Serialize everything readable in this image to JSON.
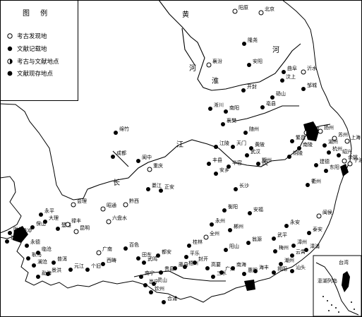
{
  "legend": {
    "title": "图 例",
    "items": [
      {
        "symbol": "open",
        "label": "考古发现地"
      },
      {
        "symbol": "filled",
        "label": "文献记载地"
      },
      {
        "symbol": "half",
        "label": "考古与文献地点"
      },
      {
        "symbol": "dot-filled",
        "label": "文献现存地点"
      }
    ]
  },
  "rivers": [
    {
      "name": "黄河",
      "label_a": "黄",
      "label_b": "河"
    },
    {
      "name": "长江",
      "label_a": "长",
      "label_b": "江",
      "label_c": "江"
    },
    {
      "name": "淮河",
      "label": "淮"
    }
  ],
  "places": [
    {
      "name": "阳原",
      "symbol": "open"
    },
    {
      "name": "北京",
      "symbol": "open"
    },
    {
      "name": "隆尧",
      "symbol": "filled"
    },
    {
      "name": "襄汾",
      "symbol": "open"
    },
    {
      "name": "安阳",
      "symbol": "filled"
    },
    {
      "name": "曲阜",
      "symbol": "filled"
    },
    {
      "name": "沂水",
      "symbol": "open"
    },
    {
      "name": "汶上",
      "symbol": "filled"
    },
    {
      "name": "开封",
      "symbol": "filled"
    },
    {
      "name": "邹城",
      "symbol": "filled"
    },
    {
      "name": "砀山",
      "symbol": "filled"
    },
    {
      "name": "亳县",
      "symbol": "filled"
    },
    {
      "name": "南阳",
      "symbol": "filled"
    },
    {
      "name": "淅川",
      "symbol": "filled"
    },
    {
      "name": "襄樊",
      "symbol": "filled"
    },
    {
      "name": "随州",
      "symbol": "filled"
    },
    {
      "name": "绵竹",
      "symbol": "filled"
    },
    {
      "name": "成都",
      "symbol": "filled"
    },
    {
      "name": "阆中",
      "symbol": "filled"
    },
    {
      "name": "重庆",
      "symbol": "open"
    },
    {
      "name": "江陵",
      "symbol": "filled"
    },
    {
      "name": "天门",
      "symbol": "filled"
    },
    {
      "name": "黄陂",
      "symbol": "filled"
    },
    {
      "name": "武汉",
      "symbol": "filled"
    },
    {
      "name": "鄂州",
      "symbol": "filled"
    },
    {
      "name": "丰县",
      "symbol": "filled"
    },
    {
      "name": "华容",
      "symbol": "filled"
    },
    {
      "name": "安乡",
      "symbol": "filled"
    },
    {
      "name": "长沙",
      "symbol": "filled"
    },
    {
      "name": "綦江",
      "symbol": "filled"
    },
    {
      "name": "正安",
      "symbol": "filled"
    },
    {
      "name": "南京",
      "symbol": "half"
    },
    {
      "name": "扬州",
      "symbol": "open"
    },
    {
      "name": "苏州",
      "symbol": "open"
    },
    {
      "name": "上海",
      "symbol": "open"
    },
    {
      "name": "杭州",
      "symbol": "filled"
    },
    {
      "name": "绍兴",
      "symbol": "filled"
    },
    {
      "name": "余姚",
      "symbol": "open"
    },
    {
      "name": "宁波",
      "symbol": "open"
    },
    {
      "name": "湖州",
      "symbol": "filled"
    },
    {
      "name": "南陵",
      "symbol": "filled"
    },
    {
      "name": "繁昌",
      "symbol": "filled"
    },
    {
      "name": "铜陵",
      "symbol": "filled"
    },
    {
      "name": "建德",
      "symbol": "filled"
    },
    {
      "name": "东阳",
      "symbol": "filled"
    },
    {
      "name": "衢州",
      "symbol": "filled"
    },
    {
      "name": "会理",
      "symbol": "open"
    },
    {
      "name": "昭通",
      "symbol": "open"
    },
    {
      "name": "黔西",
      "symbol": "open"
    },
    {
      "name": "六盘水",
      "symbol": "open"
    },
    {
      "name": "永州",
      "symbol": "filled"
    },
    {
      "name": "郴州",
      "symbol": "filled"
    },
    {
      "name": "衡阳",
      "symbol": "filled"
    },
    {
      "name": "安福",
      "symbol": "filled"
    },
    {
      "name": "全州",
      "symbol": "open"
    },
    {
      "name": "桂林",
      "symbol": "filled"
    },
    {
      "name": "阳山",
      "symbol": "filled"
    },
    {
      "name": "翁源",
      "symbol": "filled"
    },
    {
      "name": "永安",
      "symbol": "filled"
    },
    {
      "name": "泰安",
      "symbol": "filled"
    },
    {
      "name": "闽侯",
      "symbol": "open"
    },
    {
      "name": "武平",
      "symbol": "filled"
    },
    {
      "name": "梅州",
      "symbol": "filled"
    },
    {
      "name": "漳州",
      "symbol": "filled"
    },
    {
      "name": "云霄",
      "symbol": "filled"
    },
    {
      "name": "漳浦",
      "symbol": "filled"
    },
    {
      "name": "潮州",
      "symbol": "filled"
    },
    {
      "name": "揭阳",
      "symbol": "filled"
    },
    {
      "name": "汕头",
      "symbol": "filled"
    },
    {
      "name": "海丰",
      "symbol": "filled"
    },
    {
      "name": "惠阳",
      "symbol": "filled"
    },
    {
      "name": "南海",
      "symbol": "filled"
    },
    {
      "name": "广州",
      "symbol": "filled"
    },
    {
      "name": "三水",
      "symbol": "filled"
    },
    {
      "name": "高要",
      "symbol": "filled"
    },
    {
      "name": "封开",
      "symbol": "filled"
    },
    {
      "name": "梧州",
      "symbol": "filled"
    },
    {
      "name": "藤县",
      "symbol": "filled"
    },
    {
      "name": "平乐",
      "symbol": "filled"
    },
    {
      "name": "贵县",
      "symbol": "filled"
    },
    {
      "name": "合浦",
      "symbol": "filled"
    },
    {
      "name": "钦州",
      "symbol": "filled"
    },
    {
      "name": "灵山",
      "symbol": "filled"
    },
    {
      "name": "南宁",
      "symbol": "filled"
    },
    {
      "name": "邕宁",
      "symbol": "filled"
    },
    {
      "name": "武鸣",
      "symbol": "filled"
    },
    {
      "name": "都安",
      "symbol": "filled"
    },
    {
      "name": "百色",
      "symbol": "filled"
    },
    {
      "name": "田东",
      "symbol": "filled"
    },
    {
      "name": "广南",
      "symbol": "open"
    },
    {
      "name": "西畴",
      "symbol": "filled"
    },
    {
      "name": "个旧",
      "symbol": "filled"
    },
    {
      "name": "元江",
      "symbol": "filled"
    },
    {
      "name": "昆明",
      "symbol": "open"
    },
    {
      "name": "楚雄",
      "symbol": "filled"
    },
    {
      "name": "禄丰",
      "symbol": "open"
    },
    {
      "name": "大理",
      "symbol": "filled"
    },
    {
      "name": "保山",
      "symbol": "filled"
    },
    {
      "name": "永平",
      "symbol": "filled"
    },
    {
      "name": "腾冲",
      "symbol": "filled"
    },
    {
      "name": "陇川",
      "symbol": "filled"
    },
    {
      "name": "瑞丽",
      "symbol": "filled"
    },
    {
      "name": "景洪",
      "symbol": "filled"
    },
    {
      "name": "勐海",
      "symbol": "filled"
    },
    {
      "name": "耿马",
      "symbol": "filled"
    },
    {
      "name": "临沧",
      "symbol": "filled"
    },
    {
      "name": "永德",
      "symbol": "filled"
    },
    {
      "name": "澜沧",
      "symbol": "filled"
    },
    {
      "name": "普洱",
      "symbol": "filled"
    }
  ],
  "inset": {
    "labels": [
      "台湾",
      "澎湖列岛"
    ]
  }
}
